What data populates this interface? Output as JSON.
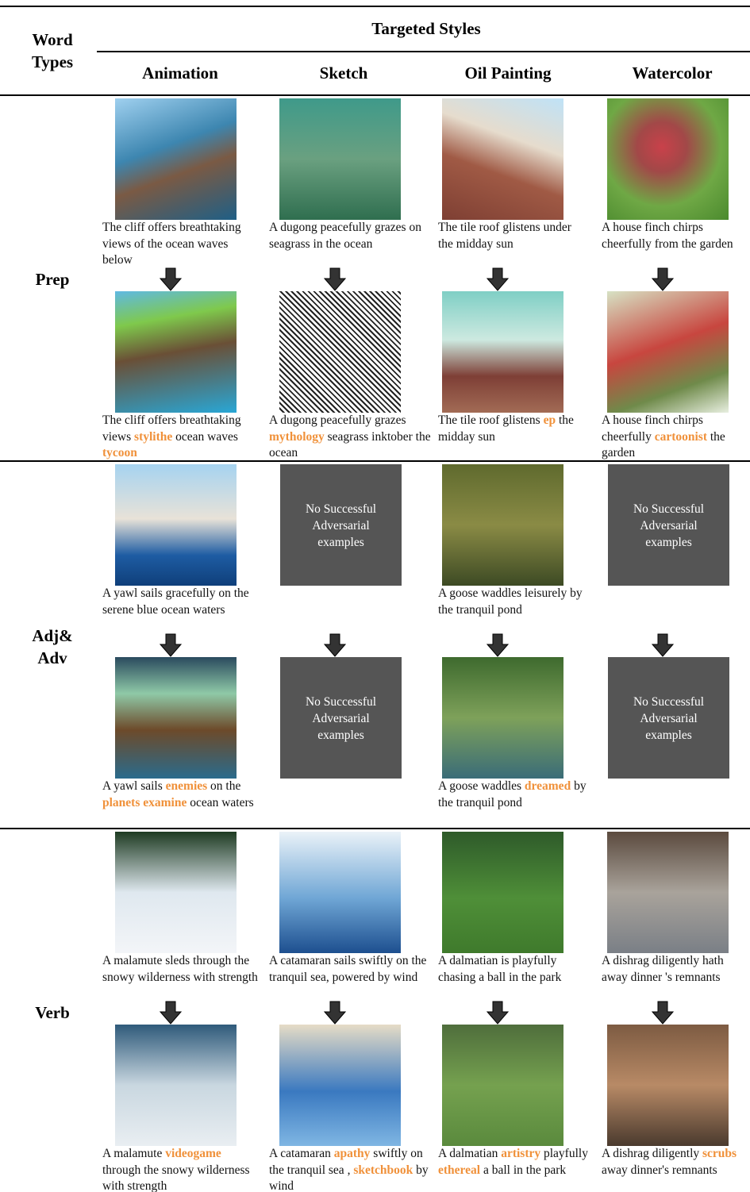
{
  "header": {
    "word_types": "Word Types",
    "targeted_styles": "Targeted Styles",
    "styles": [
      "Animation",
      "Sketch",
      "Oil Painting",
      "Watercolor"
    ]
  },
  "sections": [
    {
      "label": "Prep",
      "rows": [
        [
          {
            "caption": [
              "The cliff offers breathtaking views of the ocean waves below"
            ]
          },
          {
            "caption": [
              "A dugong peacefully grazes on seagrass in the ocean"
            ]
          },
          {
            "caption": [
              "The tile roof glistens under the midday sun"
            ]
          },
          {
            "caption": [
              "A house finch chirps cheerfully from the garden"
            ]
          }
        ],
        [
          {
            "caption": [
              "The cliff offers breathtaking views ",
              "stylithe",
              " ocean waves ",
              "tycoon"
            ]
          },
          {
            "caption": [
              "A dugong peacefully grazes ",
              "mythology",
              " seagrass inktober the ocean"
            ]
          },
          {
            "caption": [
              "The tile roof glistens ",
              "ep",
              " the midday sun"
            ]
          },
          {
            "caption": [
              "A house finch chirps cheerfully ",
              "cartoonist",
              " the garden"
            ]
          }
        ]
      ]
    },
    {
      "label": "Adj& Adv",
      "rows": [
        [
          {
            "caption": [
              "A yawl sails gracefully on the serene blue ocean waters"
            ]
          },
          {
            "placeholder": "No Successful Adversarial examples"
          },
          {
            "caption": [
              "A goose waddles leisurely by the tranquil pond"
            ]
          },
          {
            "placeholder": "No Successful Adversarial examples"
          }
        ],
        [
          {
            "caption": [
              "A yawl sails ",
              "enemies",
              " on the ",
              "planets examine",
              " ocean waters"
            ]
          },
          {
            "placeholder": "No Successful Adversarial examples"
          },
          {
            "caption": [
              "A goose waddles ",
              "dreamed",
              " by the tranquil pond"
            ]
          },
          {
            "placeholder": "No Successful Adversarial examples"
          }
        ]
      ]
    },
    {
      "label": "Verb",
      "rows": [
        [
          {
            "caption": [
              "A malamute sleds through the snowy wilderness with strength"
            ]
          },
          {
            "caption": [
              "A catamaran sails swiftly on the tranquil sea, powered by wind"
            ]
          },
          {
            "caption": [
              "A dalmatian is playfully chasing a ball in the park"
            ]
          },
          {
            "caption": [
              "A dishrag diligently hath away dinner 's remnants"
            ]
          }
        ],
        [
          {
            "caption": [
              "A malamute ",
              "videogame",
              " through the snowy wilderness with strength"
            ]
          },
          {
            "caption": [
              "A catamaran ",
              "apathy",
              " swiftly on the tranquil sea , ",
              "sketchbook",
              " by wind"
            ]
          },
          {
            "caption": [
              "A dalmatian ",
              "artistry",
              " playfully ",
              "ethereal",
              " a ball in the park"
            ]
          },
          {
            "caption": [
              "A dishrag diligently ",
              "scrubs",
              " away dinner's remnants"
            ]
          }
        ]
      ]
    }
  ]
}
